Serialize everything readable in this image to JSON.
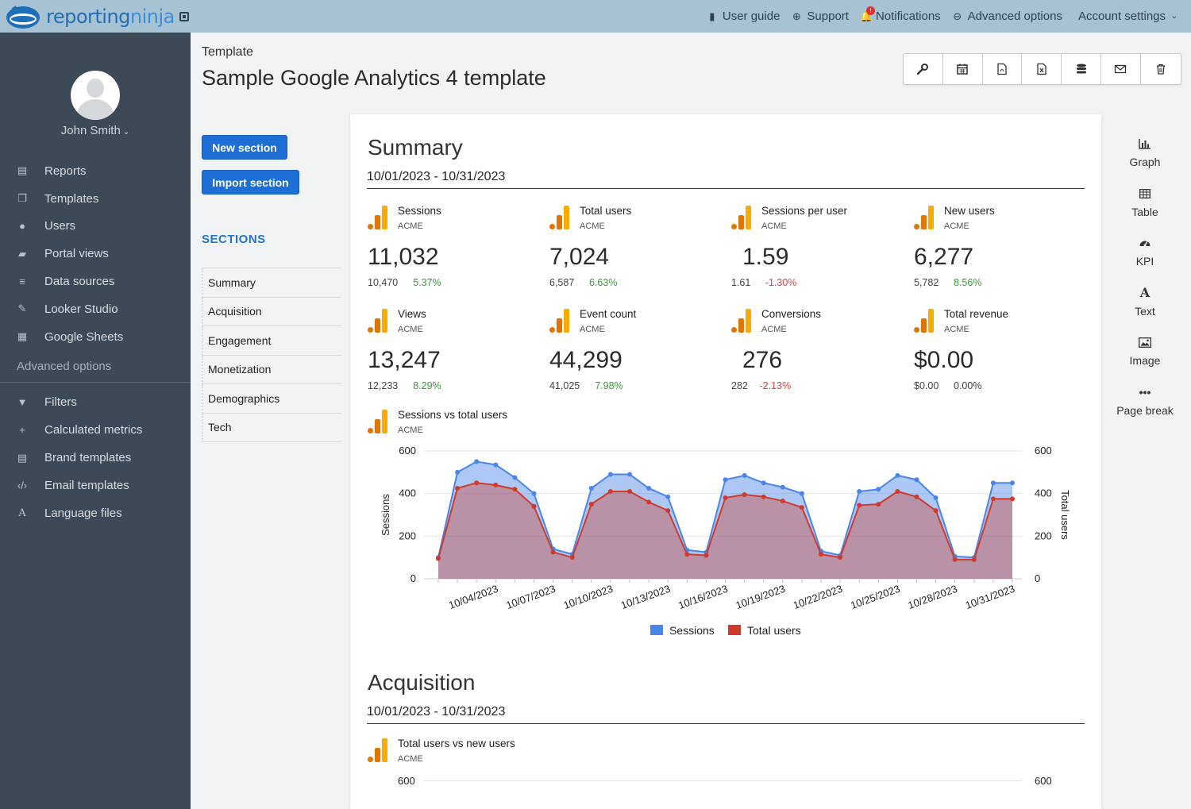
{
  "topbar": {
    "logo_a": "reporting",
    "logo_b": "ninja",
    "nav": [
      {
        "label": "User guide",
        "icon": "book-icon"
      },
      {
        "label": "Support",
        "icon": "lifebuoy-icon"
      },
      {
        "label": "Notifications",
        "icon": "bell-icon",
        "badge": "!"
      },
      {
        "label": "Advanced options",
        "icon": "circle-minus-icon"
      },
      {
        "label": "Account settings",
        "icon": "chevron-down-icon"
      }
    ]
  },
  "sidebar": {
    "user": "John Smith",
    "items": [
      {
        "label": "Reports",
        "icon": "file-icon"
      },
      {
        "label": "Templates",
        "icon": "copy-icon"
      },
      {
        "label": "Users",
        "icon": "user-icon"
      },
      {
        "label": "Portal views",
        "icon": "folder-icon"
      },
      {
        "label": "Data sources",
        "icon": "database-icon"
      },
      {
        "label": "Looker Studio",
        "icon": "brush-icon"
      },
      {
        "label": "Google Sheets",
        "icon": "grid-icon"
      }
    ],
    "subhead": "Advanced options",
    "advanced_items": [
      {
        "label": "Filters",
        "icon": "filter-icon"
      },
      {
        "label": "Calculated metrics",
        "icon": "plus-icon"
      },
      {
        "label": "Brand templates",
        "icon": "document-icon"
      },
      {
        "label": "Email templates",
        "icon": "code-icon"
      },
      {
        "label": "Language files",
        "icon": "font-icon"
      }
    ]
  },
  "header": {
    "breadcrumb": "Template",
    "title": "Sample Google Analytics 4 template",
    "toolbar": [
      "wrench-icon",
      "calendar-icon",
      "pdf-icon",
      "excel-icon",
      "database-icon",
      "envelope-icon",
      "trash-icon"
    ]
  },
  "actions": {
    "new_section": "New section",
    "import_section": "Import section"
  },
  "sections": {
    "heading": "SECTIONS",
    "items": [
      "Summary",
      "Acquisition",
      "Engagement",
      "Monetization",
      "Demographics",
      "Tech"
    ]
  },
  "summary": {
    "title": "Summary",
    "range": "10/01/2023 - 10/31/2023",
    "kpis": [
      {
        "name": "Sessions",
        "source": "ACME",
        "value": "11,032",
        "previous": "10,470",
        "delta": "5.37%",
        "trend": "pos"
      },
      {
        "name": "Total users",
        "source": "ACME",
        "value": "7,024",
        "previous": "6,587",
        "delta": "6.63%",
        "trend": "pos"
      },
      {
        "name": "Sessions per user",
        "source": "ACME",
        "value": "1.59",
        "previous": "1.61",
        "delta": "-1.30%",
        "trend": "neg"
      },
      {
        "name": "New users",
        "source": "ACME",
        "value": "6,277",
        "previous": "5,782",
        "delta": "8.56%",
        "trend": "pos"
      },
      {
        "name": "Views",
        "source": "ACME",
        "value": "13,247",
        "previous": "12,233",
        "delta": "8.29%",
        "trend": "pos"
      },
      {
        "name": "Event count",
        "source": "ACME",
        "value": "44,299",
        "previous": "41,025",
        "delta": "7.98%",
        "trend": "pos"
      },
      {
        "name": "Conversions",
        "source": "ACME",
        "value": "276",
        "previous": "282",
        "delta": "-2.13%",
        "trend": "neg"
      },
      {
        "name": "Total revenue",
        "source": "ACME",
        "value": "$0.00",
        "previous": "$0.00",
        "delta": "0.00%",
        "trend": "neu"
      }
    ],
    "chart_title": "Sessions vs total users",
    "chart_source": "ACME"
  },
  "acquisition": {
    "title": "Acquisition",
    "range": "10/01/2023 - 10/31/2023",
    "chart_title": "Total users vs new users",
    "chart_source": "ACME",
    "tick_left": "600",
    "tick_right": "600"
  },
  "palette": [
    {
      "label": "Graph",
      "icon": "bar-chart-icon"
    },
    {
      "label": "Table",
      "icon": "table-icon"
    },
    {
      "label": "KPI",
      "icon": "gauge-icon"
    },
    {
      "label": "Text",
      "icon": "font-icon"
    },
    {
      "label": "Image",
      "icon": "image-icon"
    },
    {
      "label": "Page break",
      "icon": "ellipsis-icon"
    }
  ],
  "chart_data": {
    "type": "area",
    "x": [
      "10/01/2023",
      "10/02/2023",
      "10/03/2023",
      "10/04/2023",
      "10/05/2023",
      "10/06/2023",
      "10/07/2023",
      "10/08/2023",
      "10/09/2023",
      "10/10/2023",
      "10/11/2023",
      "10/12/2023",
      "10/13/2023",
      "10/14/2023",
      "10/15/2023",
      "10/16/2023",
      "10/17/2023",
      "10/18/2023",
      "10/19/2023",
      "10/20/2023",
      "10/21/2023",
      "10/22/2023",
      "10/23/2023",
      "10/24/2023",
      "10/25/2023",
      "10/26/2023",
      "10/27/2023",
      "10/28/2023",
      "10/29/2023",
      "10/30/2023",
      "10/31/2023"
    ],
    "x_ticks": [
      "10/04/2023",
      "10/07/2023",
      "10/10/2023",
      "10/13/2023",
      "10/16/2023",
      "10/19/2023",
      "10/22/2023",
      "10/25/2023",
      "10/28/2023",
      "10/31/2023"
    ],
    "series": [
      {
        "name": "Sessions",
        "color": "#4a86e8",
        "values": [
          100,
          500,
          550,
          535,
          475,
          400,
          140,
          115,
          425,
          490,
          490,
          425,
          385,
          135,
          125,
          465,
          485,
          450,
          430,
          400,
          130,
          110,
          410,
          420,
          485,
          465,
          380,
          105,
          100,
          450,
          450
        ]
      },
      {
        "name": "Total users",
        "color": "#d03a2a",
        "values": [
          95,
          425,
          450,
          440,
          420,
          340,
          125,
          100,
          350,
          410,
          410,
          360,
          320,
          115,
          110,
          380,
          395,
          385,
          365,
          335,
          115,
          100,
          345,
          350,
          410,
          385,
          320,
          90,
          90,
          375,
          375
        ]
      }
    ],
    "ylabel": "Sessions",
    "ylabel_right": "Total users",
    "ylim": [
      0,
      600
    ],
    "y_ticks": [
      "0",
      "200",
      "400",
      "600"
    ],
    "grid": true,
    "legend": "bottom"
  }
}
